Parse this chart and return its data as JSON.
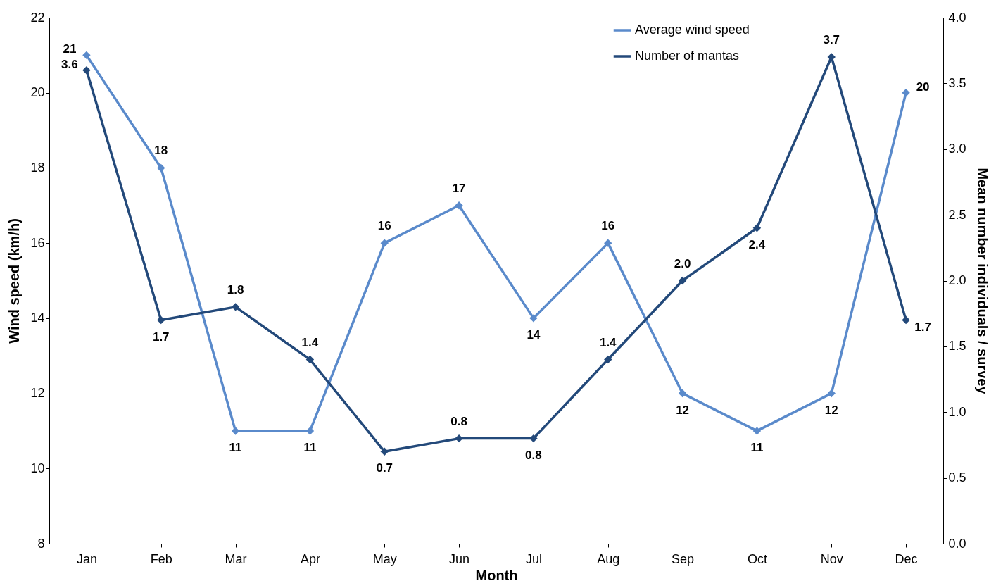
{
  "chart_data": {
    "type": "line",
    "xlabel": "Month",
    "ylabel": "Wind speed (km/h)",
    "y2label": "Mean number individuals / survey",
    "categories": [
      "Jan",
      "Feb",
      "Mar",
      "Apr",
      "May",
      "Jun",
      "Jul",
      "Aug",
      "Sep",
      "Oct",
      "Nov",
      "Dec"
    ],
    "series": [
      {
        "name": "Average wind speed",
        "color": "#5a8acb",
        "values": [
          21,
          18,
          11,
          11,
          16,
          17,
          14,
          16,
          12,
          11,
          12,
          20
        ],
        "value_labels": [
          "21",
          "18",
          "11",
          "11",
          "16",
          "17",
          "14",
          "16",
          "12",
          "11",
          "12",
          "20"
        ]
      },
      {
        "name": "Number of mantas",
        "color": "#23497a",
        "axis": "y2",
        "values": [
          3.6,
          1.7,
          1.8,
          1.4,
          0.7,
          0.8,
          0.8,
          1.4,
          2.0,
          2.4,
          3.7,
          1.7
        ],
        "value_labels": [
          "3.6",
          "1.7",
          "1.8",
          "1.4",
          "0.7",
          "0.8",
          "0.8",
          "1.4",
          "2.0",
          "2.4",
          "3.7",
          "1.7"
        ]
      }
    ],
    "ylim": [
      8,
      22
    ],
    "yticks": [
      8,
      10,
      12,
      14,
      16,
      18,
      20,
      22
    ],
    "y2lim": [
      0,
      4
    ],
    "y2ticks": [
      {
        "value": 0,
        "label": "0.0"
      },
      {
        "value": 0.5,
        "label": "0.5"
      },
      {
        "value": 1,
        "label": "1.0"
      },
      {
        "value": 1.5,
        "label": "1.5"
      },
      {
        "value": 2,
        "label": "2.0"
      },
      {
        "value": 2.5,
        "label": "2.5"
      },
      {
        "value": 3,
        "label": "3.0"
      },
      {
        "value": 3.5,
        "label": "3.5"
      },
      {
        "value": 4,
        "label": "4.0"
      }
    ],
    "legend": "top right",
    "grid": false,
    "marker": "diamond",
    "line_style": "solid"
  }
}
